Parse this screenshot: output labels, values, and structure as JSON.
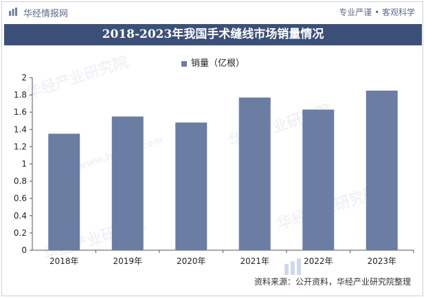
{
  "header": {
    "site_name": "华经情报网",
    "motto": "专业严谨 • 客观科学"
  },
  "colors": {
    "bar": "#6b7da3",
    "title_band": "#3c4f78",
    "text_muted": "#5a6a8c"
  },
  "source_text": "资料来源：公开资料，华经产业研究院整理",
  "watermark_text": "华经产业研究院",
  "watermark_latin": "www.huaon.com",
  "chart_data": {
    "type": "bar",
    "title": "2018-2023年我国手术缝线市场销量情况",
    "categories": [
      "2018年",
      "2019年",
      "2020年",
      "2021年",
      "2022年",
      "2023年"
    ],
    "series": [
      {
        "name": "销量（亿根）",
        "values": [
          1.35,
          1.55,
          1.48,
          1.77,
          1.63,
          1.85
        ]
      }
    ],
    "ylim": [
      0,
      2
    ],
    "yticks": [
      "0",
      "0.2",
      "0.4",
      "0.6",
      "0.8",
      "1",
      "1.2",
      "1.4",
      "1.6",
      "1.8",
      "2"
    ],
    "grid": false,
    "legend_position": "top-center"
  }
}
